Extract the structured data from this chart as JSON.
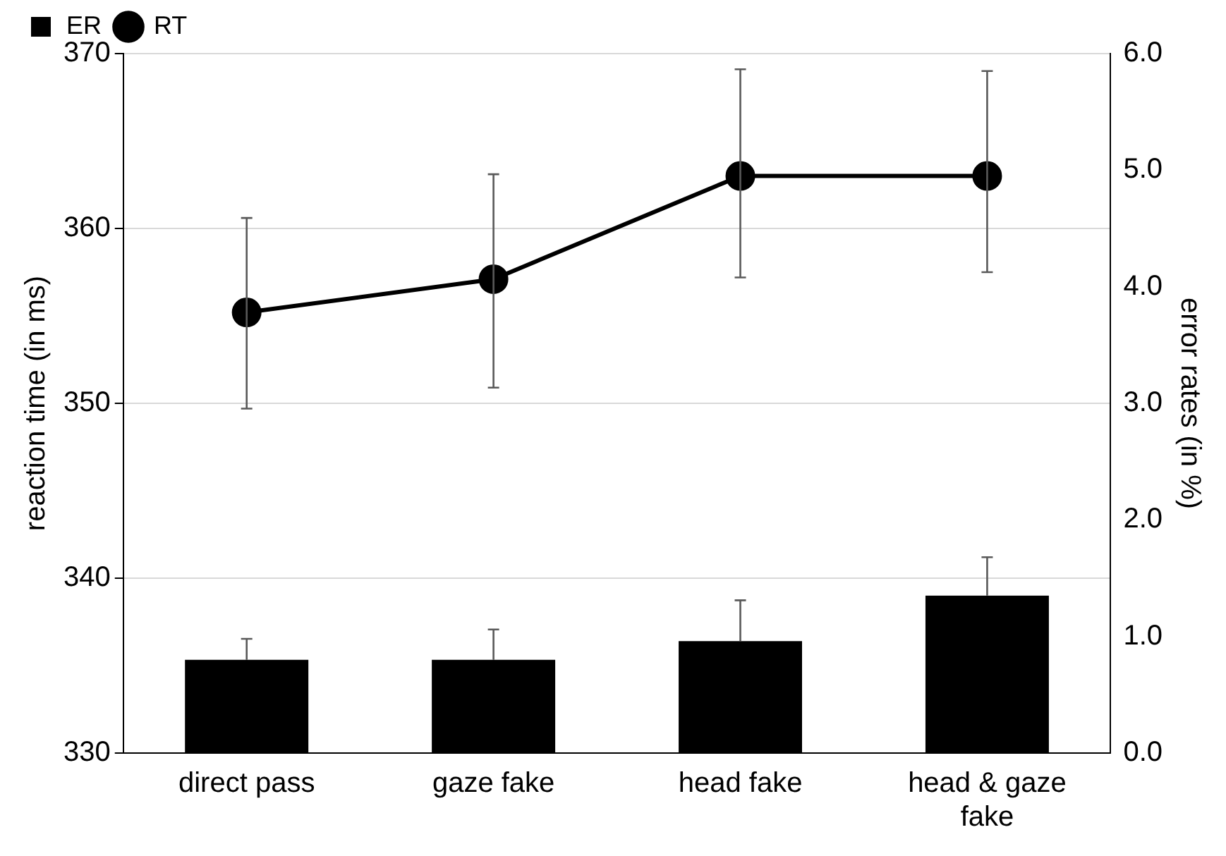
{
  "chart_data": {
    "type": "bar",
    "categories": [
      "direct pass",
      "gaze fake",
      "head fake",
      "head & gaze fake"
    ],
    "ylabel": "reaction time (in ms)",
    "y2label": "error rates (in %)",
    "series": [
      {
        "name": "ER",
        "axis": "y2",
        "color": "#000000",
        "values": [
          0.8,
          0.8,
          0.96,
          1.35
        ],
        "errors": [
          [
            0.8,
            0.98
          ],
          [
            0.8,
            1.06
          ],
          [
            0.96,
            1.31
          ],
          [
            1.35,
            1.68
          ]
        ]
      },
      {
        "name": "RT",
        "type": "line",
        "axis": "y",
        "color": "#000000",
        "values": [
          355.2,
          357.1,
          363,
          363
        ],
        "errors": [
          [
            349.7,
            360.6
          ],
          [
            350.9,
            363.1
          ],
          [
            357.2,
            369.1
          ],
          [
            357.5,
            369
          ]
        ]
      }
    ],
    "ylim": [
      330,
      370
    ],
    "yticks": [
      330,
      340,
      350,
      360,
      370
    ],
    "y2lim": [
      0,
      6
    ],
    "y2ticks": [
      {
        "value": 0,
        "label": "0.0"
      },
      {
        "value": 1,
        "label": "1.0"
      },
      {
        "value": 2,
        "label": "2.0"
      },
      {
        "value": 3,
        "label": "3.0"
      },
      {
        "value": 4,
        "label": "4.0"
      },
      {
        "value": 5,
        "label": "5.0"
      },
      {
        "value": 6,
        "label": "6.0"
      }
    ],
    "grid": "y",
    "legend": "top left",
    "marker": "circle",
    "line_style": "solid"
  }
}
